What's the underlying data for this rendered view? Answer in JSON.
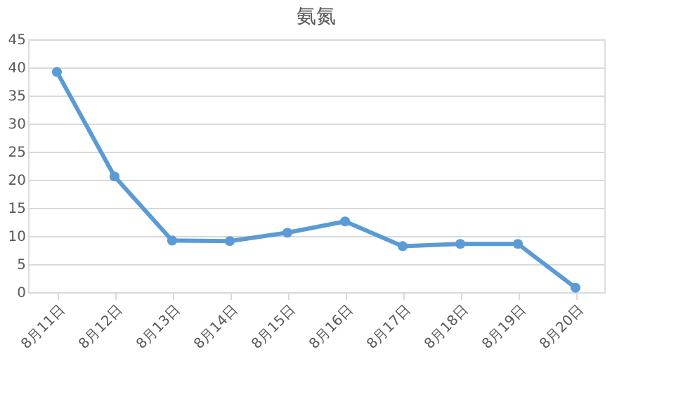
{
  "chart_data": {
    "type": "line",
    "title": "氨氮",
    "categories": [
      "8月11日",
      "8月12日",
      "8月13日",
      "8月14日",
      "8月15日",
      "8月16日",
      "8月17日",
      "8月18日",
      "8月19日",
      "8月20日"
    ],
    "series": [
      {
        "color": "#5b9bd5",
        "values": [
          39.2,
          20.6,
          9.2,
          9.1,
          10.6,
          12.6,
          8.2,
          8.6,
          8.6,
          0.8
        ]
      }
    ],
    "ylim": [
      0,
      45
    ],
    "yticks": [
      0,
      5,
      10,
      15,
      20,
      25,
      30,
      35,
      40,
      45
    ],
    "grid": "y",
    "marker": "circle",
    "line_style": "solid"
  }
}
